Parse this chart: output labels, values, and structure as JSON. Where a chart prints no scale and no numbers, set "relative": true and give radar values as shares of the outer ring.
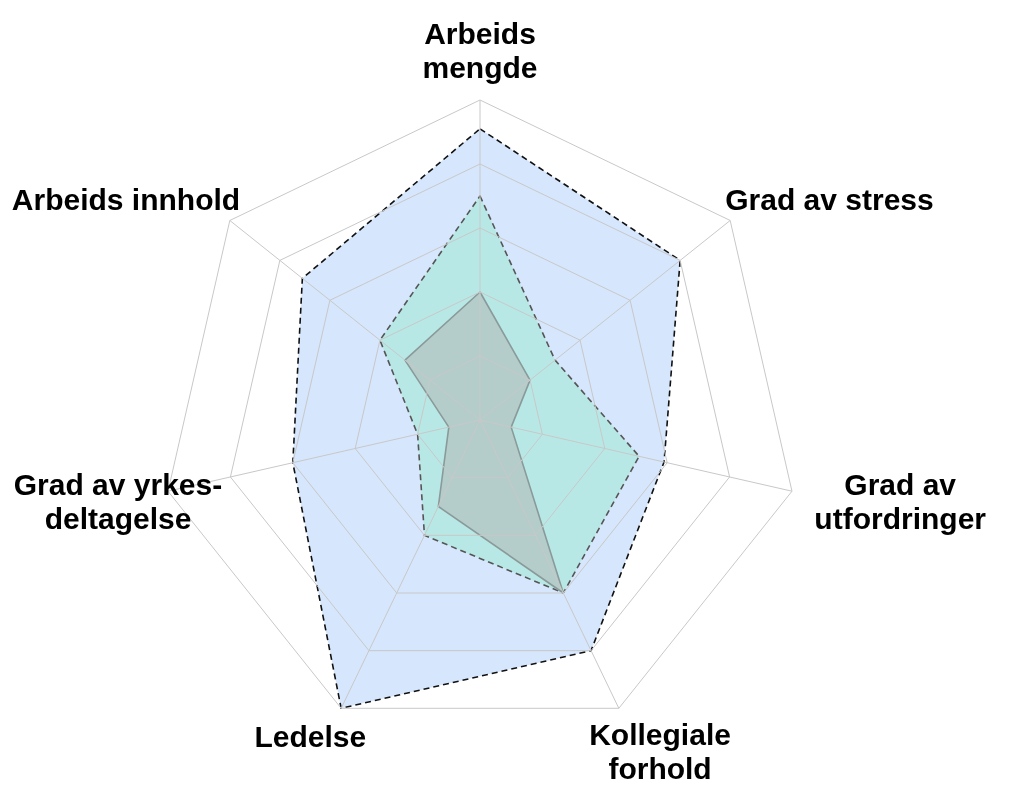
{
  "chart_data": {
    "type": "radar",
    "relative": true,
    "grid": true,
    "categories": [
      "Arbeids mengde",
      "Grad av stress",
      "Grad av utfordringer",
      "Kollegiale forhold",
      "Ledelse",
      "Grad av yrkes-deltagelse",
      "Arbeids innhold"
    ],
    "series": [
      {
        "color": "#cfe2fb",
        "line_style": "dashed",
        "values": [
          0.91,
          0.8,
          0.59,
          0.8,
          1.0,
          0.6,
          0.71
        ]
      },
      {
        "color": "#b3e7e0",
        "line_style": "dashed",
        "values": [
          0.7,
          0.3,
          0.51,
          0.6,
          0.4,
          0.2,
          0.4
        ]
      },
      {
        "color": "#b3c8c6",
        "line_style": "solid",
        "values": [
          0.4,
          0.2,
          0.1,
          0.6,
          0.3,
          0.1,
          0.3
        ]
      }
    ]
  }
}
